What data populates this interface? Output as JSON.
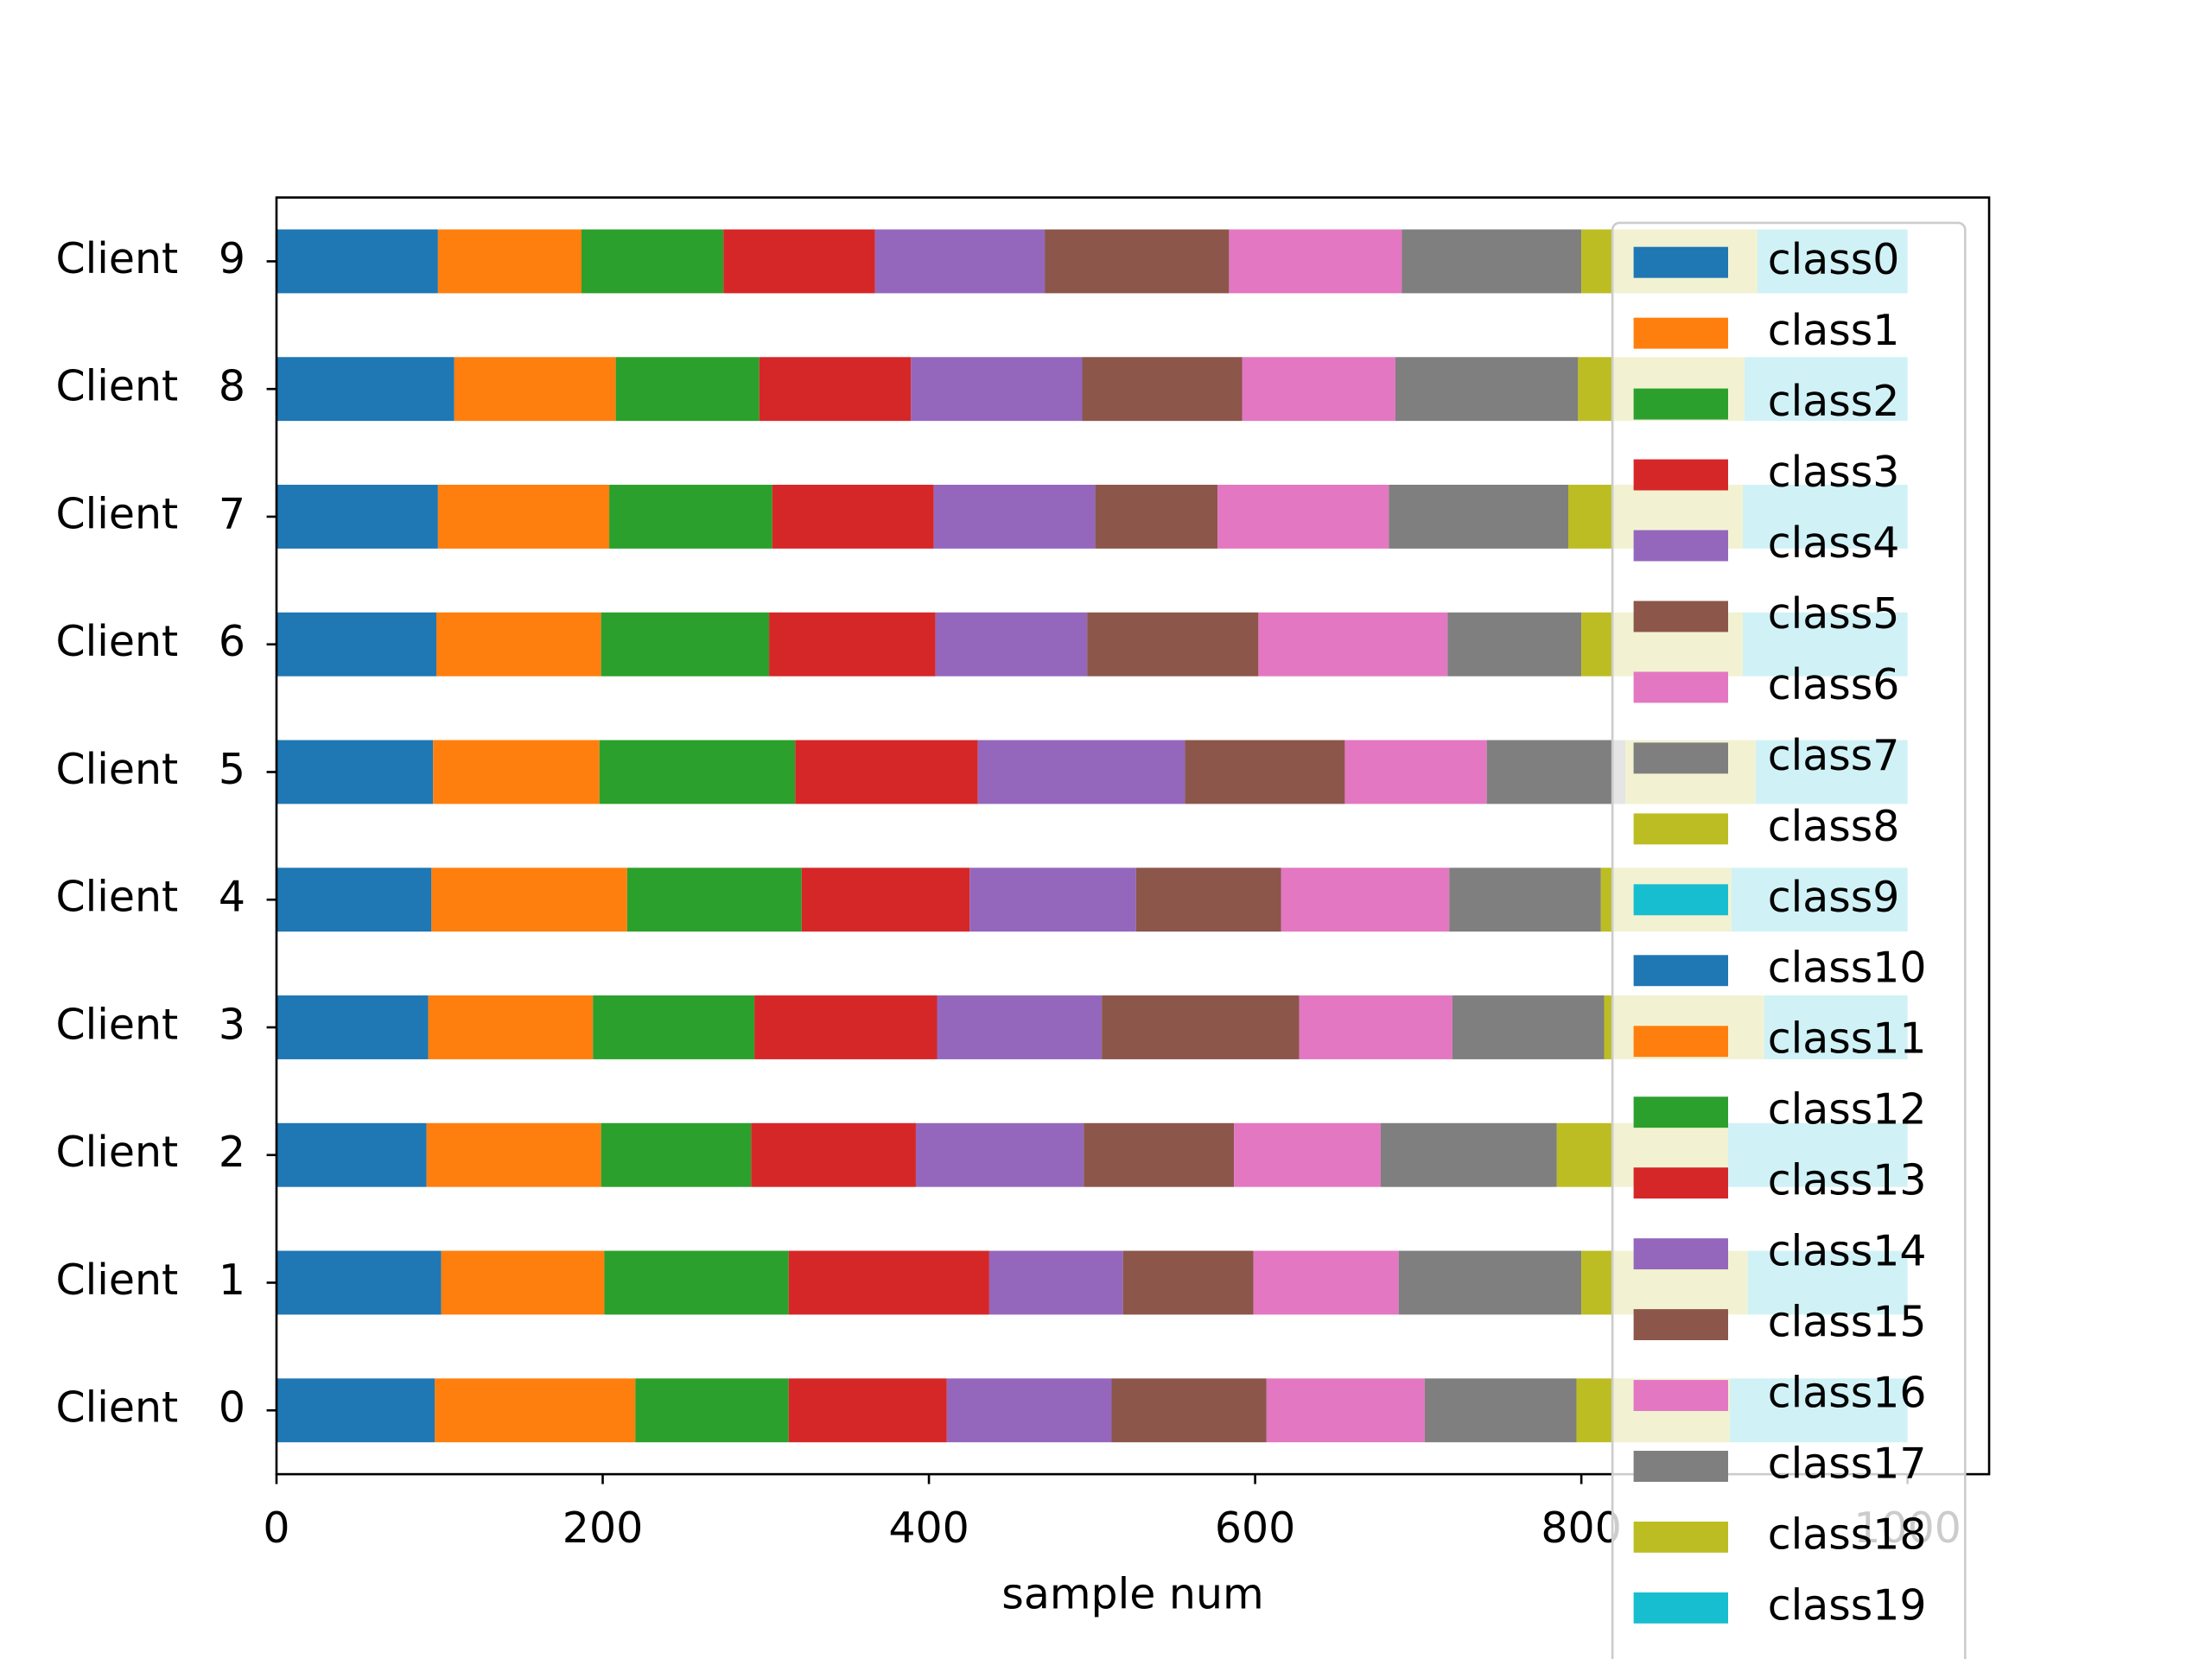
{
  "chart_data": {
    "type": "barh_stacked",
    "categories": [
      "Client   0",
      "Client   1",
      "Client   2",
      "Client   3",
      "Client   4",
      "Client   5",
      "Client   6",
      "Client   7",
      "Client   8",
      "Client   9"
    ],
    "xlabel": "sample num",
    "xlim": [
      0,
      1050
    ],
    "xticks": [
      0,
      200,
      400,
      600,
      800,
      1000
    ],
    "legend": "upper right",
    "series": [
      {
        "name": "class0",
        "color": "#1f77b4",
        "values": [
          97,
          101,
          92,
          93,
          95,
          96,
          98,
          99,
          109,
          99
        ]
      },
      {
        "name": "class1",
        "color": "#ff7f0e",
        "values": [
          123,
          100,
          107,
          101,
          120,
          102,
          101,
          105,
          99,
          88
        ]
      },
      {
        "name": "class2",
        "color": "#2ca02c",
        "values": [
          94,
          113,
          92,
          99,
          107,
          120,
          103,
          100,
          88,
          87
        ]
      },
      {
        "name": "class3",
        "color": "#d62728",
        "values": [
          97,
          123,
          101,
          112,
          103,
          112,
          102,
          99,
          93,
          93
        ]
      },
      {
        "name": "class4",
        "color": "#9467bd",
        "values": [
          101,
          82,
          103,
          101,
          102,
          127,
          93,
          99,
          105,
          104
        ]
      },
      {
        "name": "class5",
        "color": "#8c564b",
        "values": [
          95,
          80,
          92,
          121,
          89,
          98,
          105,
          75,
          98,
          113
        ]
      },
      {
        "name": "class6",
        "color": "#e377c2",
        "values": [
          97,
          89,
          90,
          94,
          103,
          87,
          116,
          105,
          94,
          106
        ]
      },
      {
        "name": "class7",
        "color": "#7f7f7f",
        "values": [
          93,
          112,
          108,
          93,
          93,
          85,
          82,
          110,
          112,
          110
        ]
      },
      {
        "name": "class8",
        "color": "#bcbd22",
        "values": [
          94,
          102,
          105,
          98,
          80,
          80,
          99,
          107,
          102,
          108
        ]
      },
      {
        "name": "class9",
        "color": "#17becf",
        "values": [
          109,
          98,
          110,
          88,
          108,
          93,
          101,
          101,
          100,
          92
        ]
      },
      {
        "name": "class10",
        "color": "#1f77b4",
        "values": [
          0,
          0,
          0,
          0,
          0,
          0,
          0,
          0,
          0,
          0
        ]
      },
      {
        "name": "class11",
        "color": "#ff7f0e",
        "values": [
          0,
          0,
          0,
          0,
          0,
          0,
          0,
          0,
          0,
          0
        ]
      },
      {
        "name": "class12",
        "color": "#2ca02c",
        "values": [
          0,
          0,
          0,
          0,
          0,
          0,
          0,
          0,
          0,
          0
        ]
      },
      {
        "name": "class13",
        "color": "#d62728",
        "values": [
          0,
          0,
          0,
          0,
          0,
          0,
          0,
          0,
          0,
          0
        ]
      },
      {
        "name": "class14",
        "color": "#9467bd",
        "values": [
          0,
          0,
          0,
          0,
          0,
          0,
          0,
          0,
          0,
          0
        ]
      },
      {
        "name": "class15",
        "color": "#8c564b",
        "values": [
          0,
          0,
          0,
          0,
          0,
          0,
          0,
          0,
          0,
          0
        ]
      },
      {
        "name": "class16",
        "color": "#e377c2",
        "values": [
          0,
          0,
          0,
          0,
          0,
          0,
          0,
          0,
          0,
          0
        ]
      },
      {
        "name": "class17",
        "color": "#7f7f7f",
        "values": [
          0,
          0,
          0,
          0,
          0,
          0,
          0,
          0,
          0,
          0
        ]
      },
      {
        "name": "class18",
        "color": "#bcbd22",
        "values": [
          0,
          0,
          0,
          0,
          0,
          0,
          0,
          0,
          0,
          0
        ]
      },
      {
        "name": "class19",
        "color": "#17becf",
        "values": [
          0,
          0,
          0,
          0,
          0,
          0,
          0,
          0,
          0,
          0
        ]
      }
    ]
  }
}
